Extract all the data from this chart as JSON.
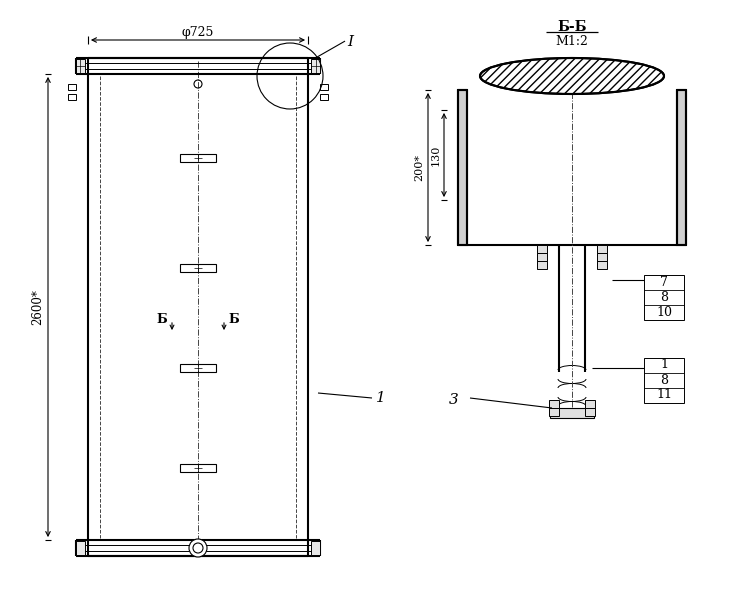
{
  "bg_color": "#ffffff",
  "dim_phi725": "φ725",
  "dim_2600": "2600*",
  "dim_200": "200*",
  "dim_130": "130",
  "label_1_left": "1",
  "label_I": "I",
  "label_B": "Б",
  "label_3": "3",
  "title_bb": "Б-Б",
  "title_scale": "M1:2",
  "labels_right_top": [
    "7",
    "8",
    "10"
  ],
  "labels_right_bot": [
    "1",
    "8",
    "11"
  ]
}
